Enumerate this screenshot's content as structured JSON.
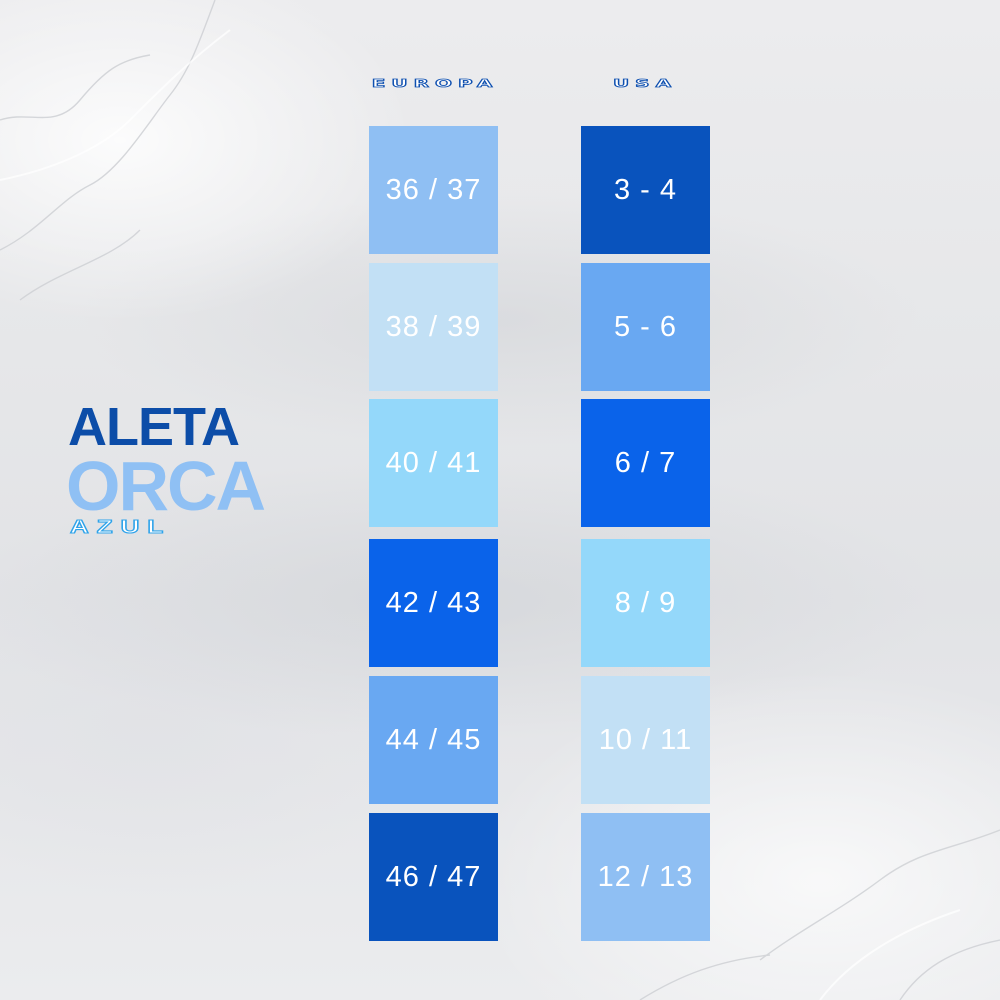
{
  "title": {
    "line1": "ALETA",
    "line2": "ORCA",
    "line3": "AZUL"
  },
  "columns": {
    "europa_header": "EUROPA",
    "usa_header": "USA"
  },
  "europa_sizes": [
    {
      "label": "36 / 37",
      "color": "#8fbff3"
    },
    {
      "label": "38 / 39",
      "color": "#c2e0f5"
    },
    {
      "label": "40 / 41",
      "color": "#94d8fa"
    },
    {
      "label": "42 / 43",
      "color": "#0a63ea"
    },
    {
      "label": "44 / 45",
      "color": "#69a8f2"
    },
    {
      "label": "46 / 47",
      "color": "#0953bd"
    }
  ],
  "usa_sizes": [
    {
      "label": "3 - 4",
      "color": "#0953bd"
    },
    {
      "label": "5 - 6",
      "color": "#69a8f2"
    },
    {
      "label": "6 / 7",
      "color": "#0a63ea"
    },
    {
      "label": "8 / 9",
      "color": "#94d8fa"
    },
    {
      "label": "10 / 11",
      "color": "#c2e0f5"
    },
    {
      "label": "12 / 13",
      "color": "#8fbff3"
    }
  ],
  "colors": {
    "title_dark_blue": "#0c4da8",
    "title_light_blue": "#8fc0f4",
    "title_outline_blue": "#2ea3ea",
    "header_outline": "#0d4fb0"
  }
}
